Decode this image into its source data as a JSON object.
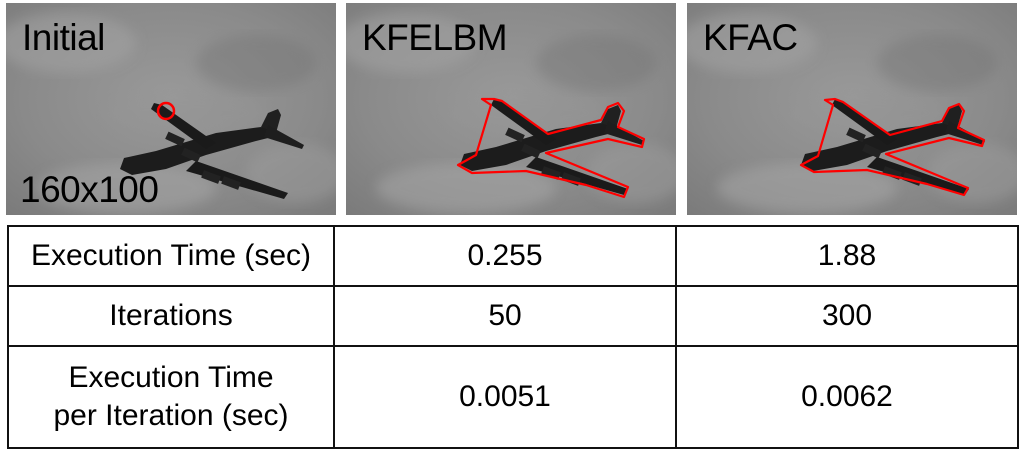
{
  "panels": [
    {
      "title": "Initial",
      "size_label": "160x100",
      "contour": "initial-circle"
    },
    {
      "title": "KFELBM",
      "contour": "airplane-outline"
    },
    {
      "title": "KFAC",
      "contour": "airplane-outline"
    }
  ],
  "colors": {
    "contour": "#ff0000",
    "sky": "#8a8a8a",
    "plane": "#1c1c1c"
  },
  "table": {
    "rows": [
      {
        "label": [
          "Execution Time (sec)"
        ],
        "kfelbm": "0.255",
        "kfac": "1.88"
      },
      {
        "label": [
          "Iterations"
        ],
        "kfelbm": "50",
        "kfac": "300"
      },
      {
        "label": [
          "Execution Time",
          "per Iteration (sec)"
        ],
        "kfelbm": "0.0051",
        "kfac": "0.0062"
      }
    ]
  }
}
